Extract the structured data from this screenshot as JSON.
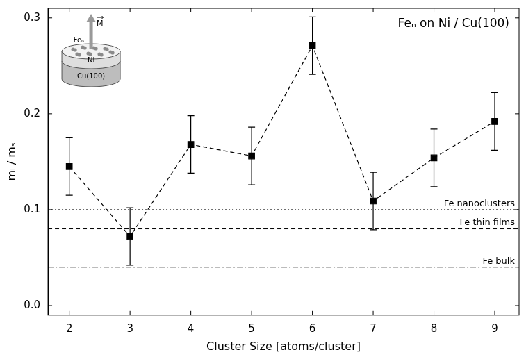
{
  "chart_data": {
    "type": "line",
    "title": "Feₙ on Ni / Cu(100)",
    "x_label": "Cluster Size [atoms/cluster]",
    "y_label": "mₗ / mₛ",
    "x": [
      2,
      3,
      4,
      5,
      6,
      7,
      8,
      9
    ],
    "values": [
      0.145,
      0.072,
      0.168,
      0.156,
      0.271,
      0.109,
      0.154,
      0.192
    ],
    "errors": [
      0.03,
      0.03,
      0.03,
      0.03,
      0.03,
      0.03,
      0.03,
      0.03
    ],
    "color": "#000000",
    "marker": "square",
    "line_style": "dashed",
    "xlim": [
      1.65,
      9.4
    ],
    "xticks": [
      2,
      3,
      4,
      5,
      6,
      7,
      8,
      9
    ],
    "ylim": [
      -0.01,
      0.31
    ],
    "yticks": [
      {
        "value": 0,
        "label": "0.0"
      },
      0.1,
      0.2,
      0.3
    ],
    "grid": false,
    "reference_lines": [
      {
        "value": 0.1,
        "label": "Fe nanoclusters",
        "line_style": "dotted"
      },
      {
        "value": 0.08,
        "label": "Fe thin films",
        "line_style": "dashed"
      },
      {
        "value": 0.04,
        "label": "Fe bulk",
        "line_style": "dashdot"
      }
    ],
    "inset": {
      "cluster": "Feₙ",
      "layers": [
        "Ni",
        "Cu(100)"
      ],
      "vector": "M"
    }
  }
}
